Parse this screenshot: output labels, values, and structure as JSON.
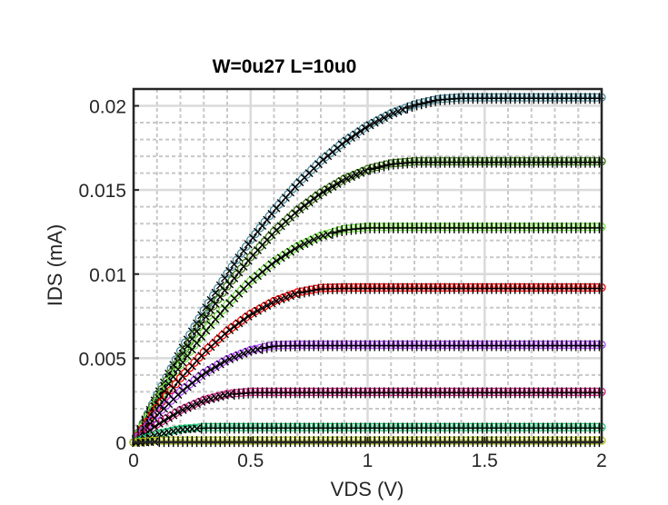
{
  "chart_data": {
    "type": "scatter",
    "title": "W=0u27 L=10u0",
    "xlabel": "VDS (V)",
    "ylabel": "IDS (mA)",
    "xlim": [
      0,
      2
    ],
    "ylim": [
      0,
      0.021
    ],
    "xticks": [
      0,
      0.5,
      1,
      1.5,
      2
    ],
    "xtick_labels": [
      "0",
      "0.5",
      "1",
      "1.5",
      "2"
    ],
    "yticks": [
      0,
      0.005,
      0.01,
      0.015,
      0.02
    ],
    "ytick_labels": [
      "0",
      "0.005",
      "0.01",
      "0.015",
      "0.02"
    ],
    "grid": true,
    "minor_grid": true,
    "legend": "none",
    "x": [
      0,
      0.1,
      0.2,
      0.3,
      0.4,
      0.5,
      0.6,
      0.7,
      0.8,
      0.9,
      1.0,
      1.1,
      1.2,
      1.3,
      1.4,
      1.5,
      1.6,
      1.7,
      1.8,
      1.9,
      2.0
    ],
    "series": [
      {
        "color": "#4a8a9c",
        "values": [
          0,
          0.00283,
          0.00544,
          0.00785,
          0.01004,
          0.01203,
          0.01381,
          0.01538,
          0.01673,
          0.01788,
          0.01883,
          0.01956,
          0.02008,
          0.0204,
          0.0205,
          0.0205,
          0.0205,
          0.0205,
          0.0205,
          0.0205,
          0.0205
        ]
      },
      {
        "color": "#3c7a12",
        "values": [
          0,
          0.00267,
          0.0051,
          0.00731,
          0.00928,
          0.01102,
          0.01253,
          0.0138,
          0.01484,
          0.01566,
          0.01624,
          0.01658,
          0.0167,
          0.0167,
          0.0167,
          0.0167,
          0.0167,
          0.0167,
          0.0167,
          0.0167,
          0.0167
        ]
      },
      {
        "color": "#74e040",
        "values": [
          0,
          0.00243,
          0.00461,
          0.00653,
          0.00819,
          0.0096,
          0.01075,
          0.01165,
          0.01229,
          0.01267,
          0.0128,
          0.0128,
          0.0128,
          0.0128,
          0.0128,
          0.0128,
          0.0128,
          0.0128,
          0.0128,
          0.0128,
          0.0128
        ]
      },
      {
        "color": "#ff0000",
        "values": [
          0,
          0.00204,
          0.00382,
          0.00535,
          0.00662,
          0.00764,
          0.0084,
          0.00891,
          0.00917,
          0.0092,
          0.0092,
          0.0092,
          0.0092,
          0.0092,
          0.0092,
          0.0092,
          0.0092,
          0.0092,
          0.0092,
          0.0092,
          0.0092
        ]
      },
      {
        "color": "#b048ff",
        "values": [
          0,
          0.00165,
          0.00302,
          0.00412,
          0.00494,
          0.00549,
          0.00577,
          0.0058,
          0.0058,
          0.0058,
          0.0058,
          0.0058,
          0.0058,
          0.0058,
          0.0058,
          0.0058,
          0.0058,
          0.0058,
          0.0058,
          0.0058,
          0.0058
        ]
      },
      {
        "color": "#c8207c",
        "values": [
          0,
          0.00108,
          0.00192,
          0.00252,
          0.00288,
          0.003,
          0.003,
          0.003,
          0.003,
          0.003,
          0.003,
          0.003,
          0.003,
          0.003,
          0.003,
          0.003,
          0.003,
          0.003,
          0.003,
          0.003,
          0.003
        ]
      },
      {
        "color": "#20c878",
        "values": [
          0,
          0.0005,
          0.0008,
          0.0009,
          0.0009,
          0.0009,
          0.0009,
          0.0009,
          0.0009,
          0.0009,
          0.0009,
          0.0009,
          0.0009,
          0.0009,
          0.0009,
          0.0009,
          0.0009,
          0.0009,
          0.0009,
          0.0009,
          0.0009
        ]
      },
      {
        "color": "#b4c420",
        "values": [
          0,
          0.0001,
          0.0001,
          0.0001,
          0.0001,
          0.0001,
          0.0001,
          0.0001,
          0.0001,
          0.0001,
          0.0001,
          0.0001,
          0.0001,
          0.0001,
          0.0001,
          0.0001,
          0.0001,
          0.0001,
          0.0001,
          0.0001,
          0.0001
        ]
      }
    ],
    "model_marker_color": "#000000"
  }
}
